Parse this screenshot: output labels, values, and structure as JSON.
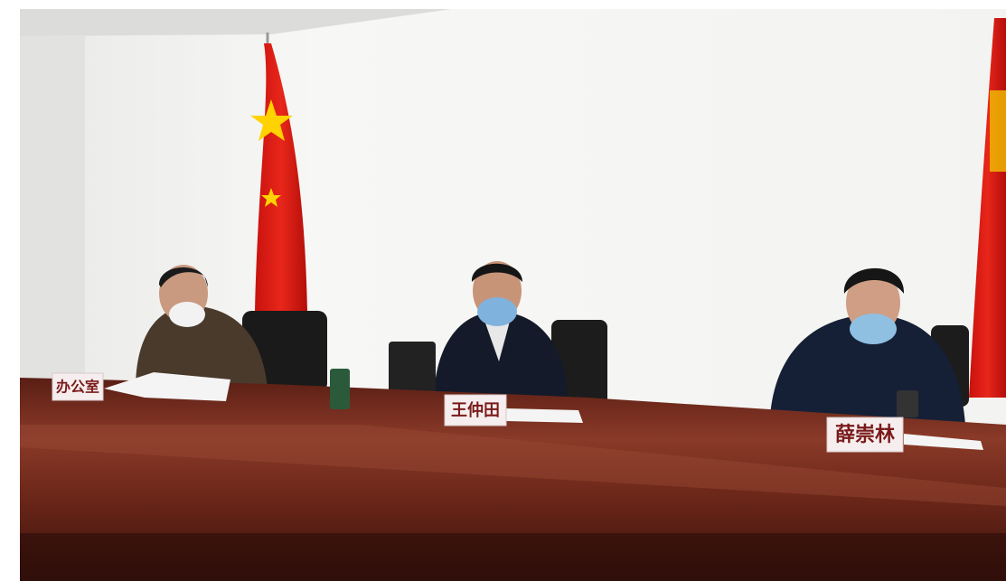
{
  "nameplates": [
    "办公室",
    "王仲田",
    "薛崇林"
  ]
}
